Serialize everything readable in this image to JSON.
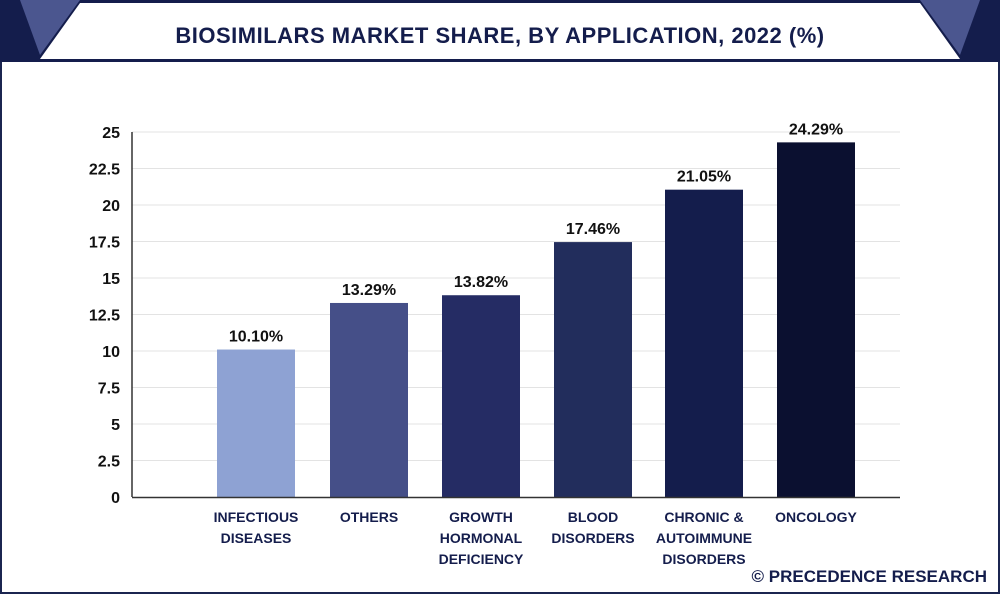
{
  "chart_data": {
    "type": "bar",
    "title": "BIOSIMILARS MARKET SHARE, BY APPLICATION, 2022 (%)",
    "categories": [
      [
        "INFECTIOUS",
        "DISEASES"
      ],
      [
        "OTHERS"
      ],
      [
        "GROWTH",
        "HORMONAL",
        "DEFICIENCY"
      ],
      [
        "BLOOD",
        "DISORDERS"
      ],
      [
        "CHRONIC &",
        "AUTOIMMUNE",
        "DISORDERS"
      ],
      [
        "ONCOLOGY"
      ]
    ],
    "values": [
      10.1,
      13.29,
      13.82,
      17.46,
      21.05,
      24.29
    ],
    "data_labels": [
      "10.10%",
      "13.29%",
      "13.82%",
      "17.46%",
      "21.05%",
      "24.29%"
    ],
    "bar_colors": [
      "#8ea2d3",
      "#454f88",
      "#252c64",
      "#222d5c",
      "#141d4c",
      "#0b1030"
    ],
    "ylim": [
      0,
      25
    ],
    "yticks": [
      "0",
      "2.5",
      "5",
      "7.5",
      "10",
      "12.5",
      "15",
      "17.5",
      "20",
      "22.5",
      "25"
    ],
    "grid": true,
    "xlabel": "",
    "ylabel": ""
  },
  "watermark": "© PRECEDENCE RESEARCH",
  "colors": {
    "navy": "#1b2550",
    "accent": "#4b568f",
    "grid": "#e3e3e3"
  }
}
